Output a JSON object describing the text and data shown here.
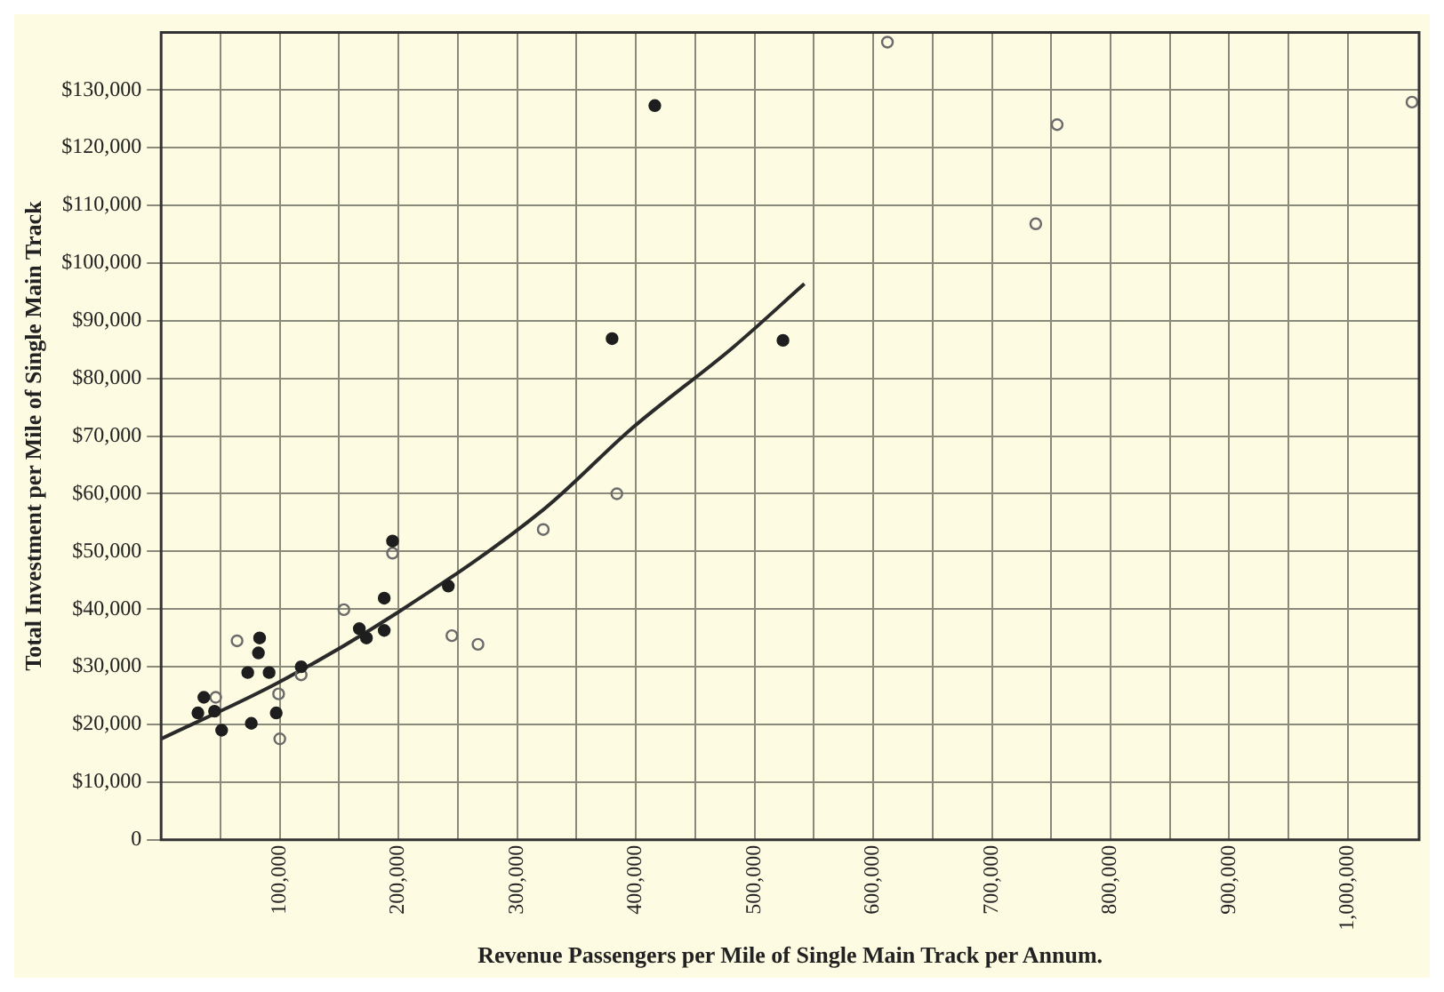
{
  "chart_data": {
    "type": "scatter",
    "xlabel": "Revenue Passengers per Mile of Single Main Track per Annum.",
    "ylabel": "Total Investment per Mile of Single Main Track",
    "xlim": [
      0,
      1060000
    ],
    "ylim": [
      0,
      140000
    ],
    "xticks": [
      {
        "value": 50000,
        "label": null
      },
      {
        "value": 100000,
        "label": "100,000"
      },
      {
        "value": 150000,
        "label": null
      },
      {
        "value": 200000,
        "label": "200,000"
      },
      {
        "value": 250000,
        "label": null
      },
      {
        "value": 300000,
        "label": "300,000"
      },
      {
        "value": 350000,
        "label": null
      },
      {
        "value": 400000,
        "label": "400,000"
      },
      {
        "value": 450000,
        "label": null
      },
      {
        "value": 500000,
        "label": "500,000"
      },
      {
        "value": 550000,
        "label": null
      },
      {
        "value": 600000,
        "label": "600,000"
      },
      {
        "value": 650000,
        "label": null
      },
      {
        "value": 700000,
        "label": "700,000"
      },
      {
        "value": 750000,
        "label": null
      },
      {
        "value": 800000,
        "label": "800,000"
      },
      {
        "value": 850000,
        "label": null
      },
      {
        "value": 900000,
        "label": "900,000"
      },
      {
        "value": 950000,
        "label": null
      },
      {
        "value": 1000000,
        "label": "1,000,000"
      }
    ],
    "yticks": [
      0,
      {
        "value": 10000,
        "label": "$10,000"
      },
      {
        "value": 20000,
        "label": "$20,000"
      },
      {
        "value": 30000,
        "label": "$30,000"
      },
      {
        "value": 40000,
        "label": "$40,000"
      },
      {
        "value": 50000,
        "label": "$50,000"
      },
      {
        "value": 60000,
        "label": "$60,000"
      },
      {
        "value": 70000,
        "label": "$70,000"
      },
      {
        "value": 80000,
        "label": "$80,000"
      },
      {
        "value": 90000,
        "label": "$90,000"
      },
      {
        "value": 100000,
        "label": "$100,000"
      },
      {
        "value": 110000,
        "label": "$110,000"
      },
      {
        "value": 120000,
        "label": "$120,000"
      },
      {
        "value": 130000,
        "label": "$130,000"
      }
    ],
    "grid": true,
    "legend": false,
    "marker": "circle",
    "series": [
      {
        "color": "#1e1e1e",
        "x": [
          31000,
          36000,
          45000,
          51000,
          73000,
          76000,
          82000,
          83000,
          91000,
          97000,
          118000,
          167000,
          173000,
          188000,
          188000,
          195000,
          242000,
          380000,
          416000,
          524000
        ],
        "values": [
          22000,
          24700,
          22300,
          19000,
          29000,
          20200,
          32400,
          35000,
          29000,
          22000,
          30000,
          36600,
          35000,
          41900,
          36300,
          51800,
          44000,
          86900,
          127300,
          86600
        ]
      },
      {
        "color": "#6a6a6a",
        "x": [
          46000,
          64000,
          99000,
          100000,
          118000,
          154000,
          195000,
          245000,
          267000,
          322000,
          384000,
          612000,
          737000,
          755000,
          1054000
        ],
        "values": [
          24700,
          34500,
          25300,
          17500,
          28600,
          39900,
          49700,
          35400,
          33900,
          53800,
          60000,
          138300,
          106800,
          124000,
          127900
        ]
      },
      {
        "type": "line",
        "color": "#2a2a2a",
        "marker": "none",
        "x": [
          0,
          100000,
          200000,
          323000,
          397000,
          482000,
          542000
        ],
        "values": [
          17500,
          27400,
          39500,
          57400,
          71400,
          85400,
          96400
        ]
      }
    ]
  }
}
